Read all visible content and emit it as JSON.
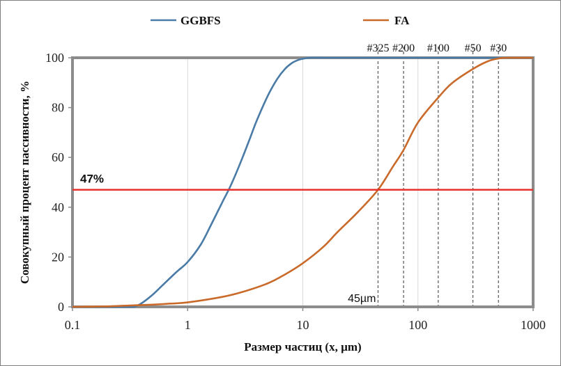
{
  "chart_data": {
    "type": "line",
    "xscale": "log",
    "xlim": [
      0.1,
      1000
    ],
    "ylim": [
      0,
      100
    ],
    "xlabel": "Размер частиц (x, µm)",
    "ylabel": "Совокупный процент пассивности, %",
    "x_ticks": [
      {
        "value": 0.1,
        "label": "0.1"
      },
      {
        "value": 1,
        "label": "1"
      },
      {
        "value": 10,
        "label": "10"
      },
      {
        "value": 100,
        "label": "100"
      },
      {
        "value": 1000,
        "label": "1000"
      }
    ],
    "y_ticks": [
      {
        "value": 0,
        "label": "0"
      },
      {
        "value": 20,
        "label": "20"
      },
      {
        "value": 40,
        "label": "40"
      },
      {
        "value": 60,
        "label": "60"
      },
      {
        "value": 80,
        "label": "80"
      },
      {
        "value": 100,
        "label": "100"
      }
    ],
    "series": [
      {
        "name": "GGBFS",
        "color": "#4a7ba7",
        "x": [
          0.1,
          0.3,
          0.35,
          0.4,
          0.5,
          0.6,
          0.8,
          1.0,
          1.3,
          1.6,
          2.0,
          2.3,
          2.6,
          3.0,
          3.5,
          4.0,
          5.0,
          6.0,
          7.0,
          8.0,
          9.0,
          10.0,
          11.0,
          12.0,
          15.0,
          20.0,
          100,
          1000
        ],
        "y": [
          0,
          0,
          0.2,
          1.5,
          5.0,
          8.5,
          14.0,
          18.0,
          25.0,
          33.0,
          42.0,
          47.5,
          53.0,
          60.0,
          68.0,
          75.0,
          85.0,
          91.5,
          95.5,
          97.8,
          99.0,
          99.6,
          99.9,
          100,
          100,
          100,
          100,
          100
        ]
      },
      {
        "name": "FA",
        "color": "#c96a2a",
        "x": [
          0.1,
          0.2,
          0.3,
          0.5,
          0.7,
          1.0,
          2.0,
          3.0,
          5.0,
          7.0,
          10.0,
          15.0,
          20.0,
          30.0,
          45.0,
          60.0,
          75.0,
          100,
          150,
          200,
          300,
          400,
          500,
          600,
          1000
        ],
        "y": [
          0,
          0.2,
          0.5,
          0.9,
          1.3,
          1.8,
          4.0,
          6.0,
          9.5,
          13.0,
          17.5,
          24.0,
          30.0,
          38.0,
          47.0,
          56.0,
          63.0,
          74.0,
          84.0,
          90.0,
          95.5,
          98.5,
          99.7,
          100,
          100
        ]
      }
    ],
    "hline": {
      "value": 47,
      "label": "47%",
      "color": "#e8302c"
    },
    "vlines": [
      {
        "value": 45,
        "label": "#325"
      },
      {
        "value": 75,
        "label": "#200"
      },
      {
        "value": 150,
        "label": "#100"
      },
      {
        "value": 300,
        "label": "#50"
      },
      {
        "value": 500,
        "label": "#30"
      }
    ],
    "annotation": {
      "text": "45µm",
      "x": 45
    },
    "legend": {
      "position": "top"
    }
  }
}
